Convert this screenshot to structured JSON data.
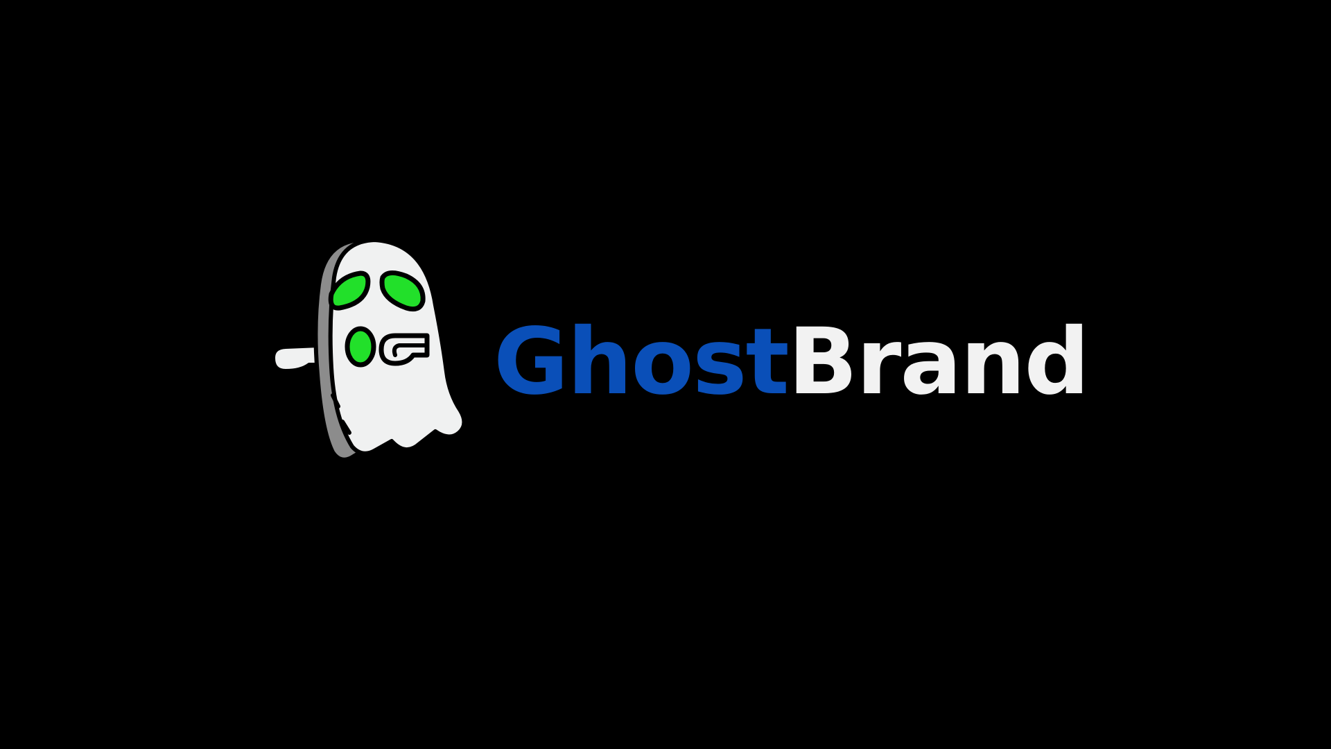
{
  "logo": {
    "icon": "ghost-icon",
    "wordmark": {
      "first": "Ghost",
      "second": "Brand"
    },
    "colors": {
      "background": "#000000",
      "first_word": "#0a4fb8",
      "second_word": "#f2f2f2",
      "ghost_body": "#f0f1f1",
      "ghost_shadow": "#8c8c8c",
      "eyes": "#22e02a",
      "outline": "#000000"
    }
  }
}
